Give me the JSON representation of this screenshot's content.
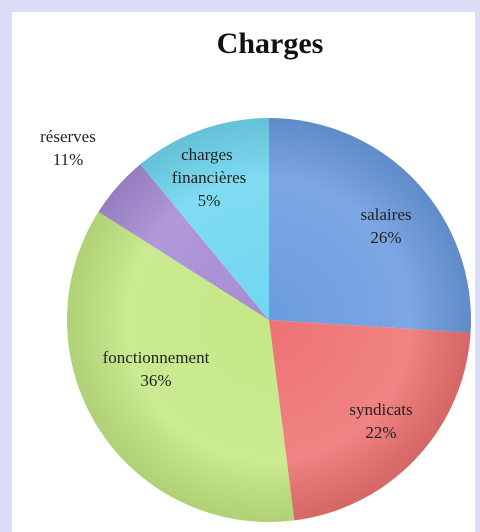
{
  "chart_data": {
    "type": "pie",
    "title": "Charges",
    "categories": [
      "salaires",
      "syndicats",
      "fonctionnement",
      "charges financières",
      "réserves"
    ],
    "values": [
      26,
      22,
      36,
      5,
      11
    ],
    "value_labels": [
      "26%",
      "22%",
      "36%",
      "5%",
      "11%"
    ],
    "colors": [
      "#6b9be0",
      "#ee7272",
      "#c4e884",
      "#a68bd4",
      "#6fd7f0"
    ]
  }
}
